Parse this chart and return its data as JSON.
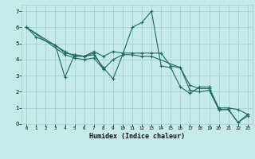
{
  "xlabel": "Humidex (Indice chaleur)",
  "bg_color": "#c5eae8",
  "grid_color": "#9ecfcc",
  "line_color": "#1e6b5e",
  "xlim": [
    -0.5,
    23.5
  ],
  "ylim": [
    0,
    7.4
  ],
  "xticks": [
    0,
    1,
    2,
    3,
    4,
    5,
    6,
    7,
    8,
    9,
    10,
    11,
    12,
    13,
    14,
    15,
    16,
    17,
    18,
    19,
    20,
    21,
    22,
    23
  ],
  "yticks": [
    0,
    1,
    2,
    3,
    4,
    5,
    6,
    7
  ],
  "series": [
    {
      "x": [
        0,
        1,
        3,
        4,
        5,
        6,
        7,
        8,
        9,
        10,
        11,
        12,
        13,
        14,
        15,
        16,
        17,
        18,
        19,
        20,
        21,
        22,
        23
      ],
      "y": [
        6.0,
        5.4,
        4.9,
        4.4,
        4.3,
        4.2,
        4.3,
        3.5,
        2.8,
        4.3,
        6.0,
        6.3,
        7.0,
        3.6,
        3.5,
        2.3,
        1.9,
        2.3,
        2.3,
        0.9,
        0.9,
        0.1,
        0.6
      ]
    },
    {
      "x": [
        0,
        4,
        5,
        6,
        7,
        8,
        9,
        10,
        11,
        12,
        13,
        14,
        15,
        16,
        17,
        18,
        19,
        20,
        21,
        22,
        23
      ],
      "y": [
        6.0,
        4.5,
        4.2,
        4.2,
        4.5,
        4.2,
        4.5,
        4.4,
        4.4,
        4.4,
        4.4,
        4.4,
        3.6,
        3.5,
        2.4,
        2.2,
        2.2,
        1.0,
        1.0,
        0.9,
        0.6
      ]
    },
    {
      "x": [
        0,
        4,
        5,
        6,
        7,
        8,
        9,
        10,
        11,
        12,
        13,
        16,
        17,
        18,
        19,
        20,
        21,
        22,
        23
      ],
      "y": [
        6.0,
        4.3,
        4.1,
        4.0,
        4.1,
        3.4,
        4.0,
        4.3,
        4.3,
        4.2,
        4.2,
        3.5,
        2.1,
        2.0,
        2.1,
        0.9,
        0.9,
        0.1,
        0.5
      ]
    },
    {
      "x": [
        3,
        4,
        5,
        6,
        7,
        8
      ],
      "y": [
        4.9,
        2.9,
        4.3,
        4.2,
        4.4,
        3.4
      ]
    }
  ]
}
